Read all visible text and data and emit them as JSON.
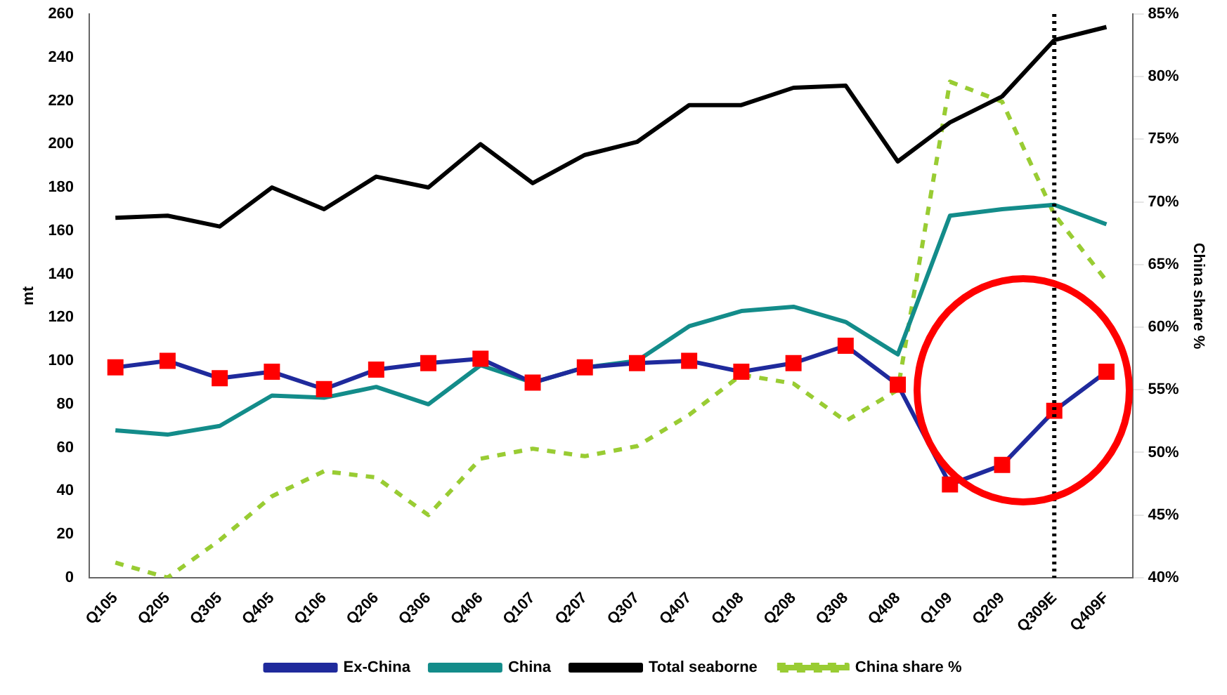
{
  "chart_data": {
    "type": "line",
    "categories": [
      "Q105",
      "Q205",
      "Q305",
      "Q405",
      "Q106",
      "Q206",
      "Q306",
      "Q406",
      "Q107",
      "Q207",
      "Q307",
      "Q407",
      "Q108",
      "Q208",
      "Q308",
      "Q408",
      "Q109",
      "Q209",
      "Q309E",
      "Q409F"
    ],
    "series": [
      {
        "name": "Ex-China",
        "color": "#1f2a9c",
        "marker": "square",
        "colors": [
          "#ff0000",
          "#ff0000",
          "#ff0000",
          "#ff0000",
          "#ff0000",
          "#ff0000",
          "#ff0000",
          "#ff0000",
          "#ff0000",
          "#ff0000",
          "#ff0000",
          "#ff0000",
          "#ff0000",
          "#ff0000",
          "#ff0000",
          "#ff0000",
          "#ff0000",
          "#ff0000",
          "#ff0000",
          "#ff0000"
        ],
        "values": [
          97,
          100,
          92,
          95,
          87,
          96,
          99,
          101,
          90,
          97,
          99,
          100,
          95,
          99,
          107,
          89,
          43,
          52,
          77,
          95
        ]
      },
      {
        "name": "China",
        "color": "#138c8a",
        "values": [
          68,
          66,
          70,
          84,
          83,
          88,
          80,
          98,
          90,
          97,
          100,
          116,
          123,
          125,
          118,
          103,
          167,
          170,
          172,
          163
        ]
      },
      {
        "name": "Total seaborne",
        "color": "#000000",
        "values": [
          166,
          167,
          162,
          180,
          170,
          185,
          180,
          200,
          182,
          195,
          201,
          218,
          218,
          226,
          227,
          192,
          210,
          222,
          248,
          254
        ]
      },
      {
        "name": "China share %",
        "color": "#99cc33",
        "line_style": "dashed",
        "axis": "y2",
        "values": [
          41.2,
          40,
          43,
          46.5,
          48.5,
          48,
          45,
          49.5,
          50.3,
          49.7,
          50.5,
          53,
          56.2,
          55.5,
          52.5,
          55,
          79.6,
          78,
          69,
          63.7
        ]
      }
    ],
    "ylabel": "mt",
    "y2label": "China share %",
    "ylim": [
      0,
      260
    ],
    "yticks": [
      0,
      20,
      40,
      60,
      80,
      100,
      120,
      140,
      160,
      180,
      200,
      220,
      240,
      260
    ],
    "y2lim": [
      40,
      85
    ],
    "y2ticks": [
      {
        "value": 40,
        "label": "40%"
      },
      {
        "value": 45,
        "label": "45%"
      },
      {
        "value": 50,
        "label": "50%"
      },
      {
        "value": 55,
        "label": "55%"
      },
      {
        "value": 60,
        "label": "60%"
      },
      {
        "value": 65,
        "label": "65%"
      },
      {
        "value": 70,
        "label": "70%"
      },
      {
        "value": 75,
        "label": "75%"
      },
      {
        "value": 80,
        "label": "80%"
      },
      {
        "value": 85,
        "label": "85%"
      }
    ],
    "ref_lines": [
      {
        "axis": "x",
        "value": "Q309E",
        "color": "#000000",
        "line_style": "dotted"
      }
    ],
    "grid": false,
    "legend": "bottom",
    "marker": "none"
  }
}
